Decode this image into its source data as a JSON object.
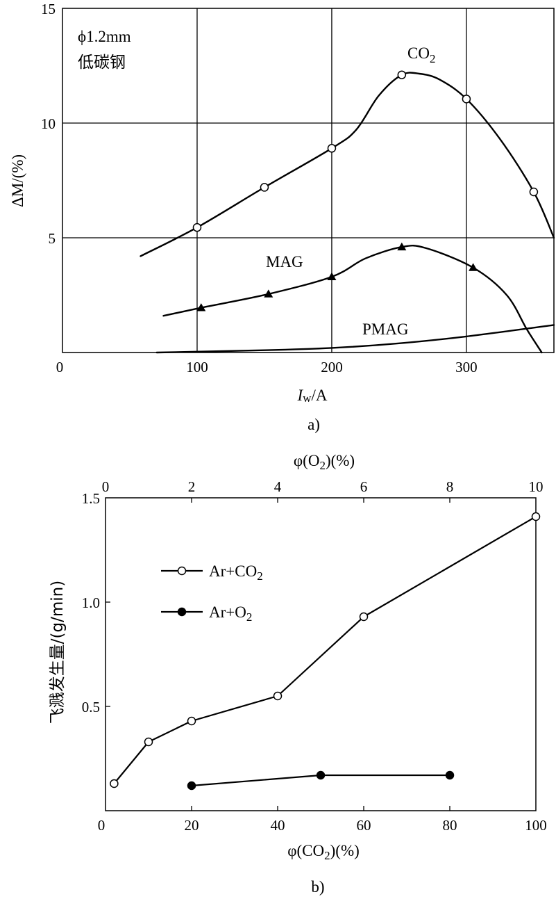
{
  "chart_data": [
    {
      "id": "a",
      "type": "line",
      "caption": "a)",
      "xlabel_main": "I",
      "xlabel_sub": "w",
      "xlabel_unit": "/A",
      "ylabel": "ΔM/(%)",
      "annotation_line1": "ϕ1.2mm",
      "annotation_line2": "低碳钢",
      "xlim": [
        0,
        365
      ],
      "ylim": [
        0,
        15
      ],
      "x_ticks": [
        0,
        100,
        200,
        300
      ],
      "y_ticks": [
        5,
        10,
        15
      ],
      "grid": true,
      "series": [
        {
          "name": "CO2",
          "label_main": "CO",
          "label_sub": "2",
          "marker": "open-circle",
          "curve": [
            [
              58,
              4.2
            ],
            [
              100,
              5.45
            ],
            [
              150,
              7.2
            ],
            [
              200,
              8.9
            ],
            [
              218,
              9.7
            ],
            [
              235,
              11.2
            ],
            [
              252,
              12.1
            ],
            [
              265,
              12.15
            ],
            [
              280,
              11.9
            ],
            [
              300,
              11.05
            ],
            [
              325,
              9.3
            ],
            [
              350,
              7.0
            ],
            [
              365,
              5.0
            ]
          ],
          "points": [
            [
              100,
              5.45
            ],
            [
              150,
              7.2
            ],
            [
              200,
              8.9
            ],
            [
              252,
              12.1
            ],
            [
              300,
              11.05
            ],
            [
              350,
              7.0
            ]
          ]
        },
        {
          "name": "MAG",
          "marker": "filled-triangle",
          "curve": [
            [
              75,
              1.6
            ],
            [
              103,
              1.95
            ],
            [
              153,
              2.55
            ],
            [
              200,
              3.3
            ],
            [
              225,
              4.1
            ],
            [
              252,
              4.6
            ],
            [
              270,
              4.55
            ],
            [
              305,
              3.7
            ],
            [
              330,
              2.5
            ],
            [
              345,
              1.0
            ],
            [
              356,
              0
            ]
          ],
          "points": [
            [
              103,
              1.95
            ],
            [
              153,
              2.55
            ],
            [
              200,
              3.3
            ],
            [
              252,
              4.6
            ],
            [
              305,
              3.7
            ]
          ]
        },
        {
          "name": "PMAG",
          "marker": "none",
          "curve": [
            [
              70,
              0
            ],
            [
              150,
              0.1
            ],
            [
              200,
              0.2
            ],
            [
              250,
              0.4
            ],
            [
              300,
              0.7
            ],
            [
              365,
              1.2
            ]
          ],
          "points": []
        }
      ]
    },
    {
      "id": "b",
      "type": "line",
      "caption": "b)",
      "xlabel": "φ(CO2)(%)",
      "xlabel_prefix": "φ(CO",
      "xlabel_sub": "2",
      "xlabel_suffix": ")(%)",
      "x2label_prefix": "φ(O",
      "x2label_sub": "2",
      "x2label_suffix": ")(%)",
      "ylabel": "飞溅发生量/(g/min)",
      "xlim": [
        0,
        100
      ],
      "x2lim": [
        0,
        10
      ],
      "ylim": [
        0,
        1.5
      ],
      "x_ticks": [
        0,
        20,
        40,
        60,
        80,
        100
      ],
      "x2_ticks": [
        0,
        2,
        4,
        6,
        8,
        10
      ],
      "y_ticks": [
        0.5,
        1.0,
        1.5
      ],
      "y_tick_labels": [
        "0.5",
        "1.0",
        "1.5"
      ],
      "grid": false,
      "legend": "upper-left",
      "series": [
        {
          "name": "Ar+CO2",
          "label_main": "Ar+CO",
          "label_sub": "2",
          "marker": "open-circle",
          "axis": "bottom",
          "x": [
            2,
            10,
            20,
            40,
            60,
            100
          ],
          "y": [
            0.13,
            0.33,
            0.43,
            0.55,
            0.93,
            1.41
          ]
        },
        {
          "name": "Ar+O2",
          "label_main": "Ar+O",
          "label_sub": "2",
          "marker": "filled-circle",
          "axis": "top",
          "x": [
            2,
            5,
            8
          ],
          "y": [
            0.12,
            0.17,
            0.17
          ]
        }
      ]
    }
  ]
}
